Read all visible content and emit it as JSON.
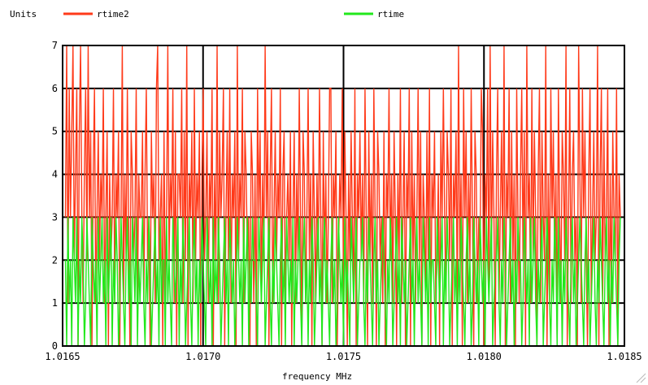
{
  "chart_data": {
    "type": "line",
    "ylabel": "Units",
    "xlabel": "frequency   MHz",
    "xlim": [
      1.0165,
      1.0185
    ],
    "ylim": [
      0,
      7
    ],
    "x_ticks": [
      "1.0165",
      "1.0170",
      "1.0175",
      "1.0180",
      "1.0185"
    ],
    "y_ticks": [
      "0",
      "1",
      "2",
      "3",
      "4",
      "5",
      "6",
      "7"
    ],
    "grid": true,
    "legend_placement": "top",
    "x_start": 1.01651,
    "x_step": 4.5e-06,
    "series": [
      {
        "name": "rtime2",
        "color": "#ff3a1a",
        "values": [
          3,
          7,
          1,
          6,
          3,
          5,
          7,
          2,
          4,
          6,
          0,
          5,
          7,
          3,
          1,
          4,
          6,
          2,
          7,
          3,
          5,
          0,
          4,
          6,
          1,
          3,
          5,
          2,
          4,
          3,
          6,
          1,
          3,
          5,
          0,
          4,
          2,
          3,
          6,
          1,
          4,
          3,
          5,
          0,
          3,
          7,
          1,
          4,
          2,
          6,
          3,
          0,
          5,
          4,
          2,
          3,
          6,
          1,
          4,
          3,
          3,
          5,
          1,
          4,
          6,
          2,
          3,
          0,
          5,
          3,
          4,
          1,
          6,
          7,
          2,
          3,
          4,
          0,
          5,
          1,
          3,
          7,
          2,
          4,
          3,
          6,
          1,
          5,
          0,
          4,
          4,
          3,
          6,
          1,
          5,
          2,
          7,
          0,
          4,
          3,
          5,
          1,
          6,
          2,
          4,
          3,
          5,
          0,
          4,
          6,
          2,
          3,
          5,
          1,
          4,
          3,
          6,
          0,
          4,
          2,
          7,
          1,
          5,
          3,
          4,
          6,
          0,
          3,
          5,
          2,
          6,
          1,
          4,
          3,
          5,
          0,
          7,
          2,
          4,
          3,
          6,
          1,
          5,
          4,
          2,
          3,
          0,
          5,
          4,
          1,
          4,
          0,
          6,
          3,
          5,
          1,
          4,
          2,
          7,
          3,
          5,
          0,
          4,
          6,
          1,
          3,
          5,
          2,
          4,
          3,
          6,
          0,
          4,
          5,
          1,
          3,
          4,
          2,
          5,
          0,
          3,
          5,
          1,
          4,
          2,
          6,
          3,
          0,
          5,
          4,
          1,
          3,
          6,
          2,
          4,
          0,
          5,
          3,
          1,
          4,
          2,
          6,
          3,
          0,
          5,
          2,
          4,
          1,
          3,
          6,
          6,
          1,
          4,
          3,
          5,
          0,
          2,
          4,
          3,
          6,
          1,
          5,
          3,
          0,
          4,
          2,
          5,
          3,
          1,
          6,
          0,
          4,
          3,
          5,
          2,
          4,
          1,
          6,
          3,
          0,
          5,
          2,
          4,
          1,
          6,
          3,
          0,
          5,
          4,
          2,
          3,
          1,
          5,
          0,
          4,
          3,
          6,
          2,
          4,
          1,
          5,
          3,
          0,
          4,
          2,
          6,
          1,
          3,
          5,
          0,
          4,
          3,
          6,
          0,
          5,
          2,
          4,
          1,
          3,
          6,
          2,
          5,
          0,
          4,
          3,
          1,
          5,
          2,
          6,
          0,
          4,
          3,
          5,
          1,
          2,
          4,
          0,
          5,
          3,
          6,
          3,
          1,
          5,
          4,
          2,
          6,
          0,
          4,
          3,
          5,
          1,
          7,
          2,
          4,
          0,
          6,
          3,
          5,
          1,
          4,
          2,
          6,
          3,
          0,
          5,
          4,
          1,
          3,
          2,
          6,
          5,
          0,
          4,
          3,
          6,
          1,
          7,
          2,
          5,
          3,
          0,
          4,
          6,
          1,
          3,
          5,
          2,
          7,
          0,
          4,
          3,
          6,
          1,
          5,
          2,
          4,
          0,
          6,
          3,
          1,
          4,
          6,
          2,
          5,
          0,
          7,
          3,
          4,
          1,
          6,
          2,
          5,
          3,
          0,
          4,
          6,
          1,
          5,
          3,
          2,
          7,
          0,
          4,
          1,
          6,
          3,
          5,
          2,
          4,
          0,
          6,
          3,
          1,
          5,
          4,
          2,
          7,
          0,
          3,
          6,
          1,
          4,
          5,
          2,
          3,
          0,
          7,
          4,
          1,
          6,
          3,
          5,
          2,
          0,
          4,
          6,
          1,
          3,
          5,
          2,
          3,
          7,
          0,
          4,
          6,
          1,
          5,
          2,
          3,
          6,
          0,
          4,
          1,
          5,
          3,
          2,
          6,
          0,
          4,
          3
        ]
      },
      {
        "name": "rtime",
        "color": "#22e81c",
        "values": [
          2,
          0,
          3,
          1,
          2,
          0,
          3,
          2,
          1,
          3,
          0,
          2,
          1,
          3,
          2,
          0,
          1,
          3,
          2,
          1,
          0,
          3,
          2,
          1,
          2,
          0,
          3,
          1,
          2,
          3,
          1,
          2,
          0,
          3,
          1,
          2,
          3,
          0,
          2,
          1,
          3,
          2,
          0,
          1,
          3,
          2,
          1,
          0,
          2,
          3,
          1,
          2,
          0,
          3,
          2,
          1,
          3,
          0,
          2,
          1,
          2,
          3,
          1,
          0,
          2,
          1,
          3,
          2,
          0,
          1,
          2,
          3,
          1,
          2,
          0,
          3,
          1,
          2,
          2,
          0,
          3,
          1,
          2,
          1,
          0,
          3,
          2,
          1,
          2,
          3,
          0,
          2,
          1,
          3,
          2,
          0,
          1,
          2,
          3,
          1,
          0,
          2,
          3,
          1,
          2,
          0,
          2,
          1,
          3,
          2,
          1,
          0,
          3,
          2,
          1,
          2,
          0,
          3,
          1,
          2,
          1,
          3,
          2,
          0,
          1,
          2,
          3,
          1,
          2,
          0,
          3,
          2,
          1,
          2,
          0,
          1,
          3,
          2,
          1,
          2,
          0,
          3,
          1,
          2,
          3,
          0,
          2,
          1,
          3,
          2,
          2,
          1,
          0,
          3,
          2,
          1,
          2,
          3,
          0,
          1,
          2,
          3,
          1,
          0,
          2,
          1,
          3,
          2,
          1,
          0,
          2,
          3,
          1,
          2,
          0,
          3,
          2,
          1,
          2,
          1,
          3,
          0,
          2,
          1,
          2,
          3,
          1,
          0,
          2,
          3,
          1,
          2,
          0,
          2,
          1,
          3,
          2,
          0,
          1,
          2,
          3,
          1,
          2,
          0,
          2,
          3,
          1,
          2,
          1,
          0,
          2,
          3,
          1,
          2,
          0,
          1,
          3,
          2,
          1,
          2,
          0,
          3,
          1,
          2,
          1,
          0,
          3,
          2,
          1,
          2,
          3,
          0,
          1,
          2,
          2,
          3,
          1,
          0,
          2,
          1,
          3,
          2,
          1,
          0,
          2,
          3,
          1,
          2,
          0,
          1,
          2,
          3,
          2,
          1,
          0,
          2,
          1,
          3,
          2,
          0,
          1,
          2,
          3,
          1,
          2,
          0,
          3,
          2,
          1,
          2,
          0,
          1,
          2,
          3,
          1,
          2,
          0,
          2,
          3,
          1,
          2,
          1,
          0,
          3,
          2,
          1,
          2,
          0,
          3,
          1,
          2,
          2,
          1,
          0,
          3,
          2,
          1,
          2,
          3,
          0,
          2,
          1,
          3,
          2,
          0,
          1,
          2,
          3,
          1,
          2,
          0,
          2,
          1,
          3,
          2,
          1,
          0,
          2,
          3,
          1,
          2,
          0,
          1,
          3,
          2,
          1,
          2,
          0,
          3,
          2,
          1,
          2,
          0,
          3,
          2,
          1,
          2,
          3,
          0,
          1,
          2,
          2,
          3,
          1,
          0,
          2,
          1,
          3,
          2,
          0,
          1,
          2,
          3,
          1,
          2,
          0,
          2,
          1,
          3,
          2,
          2,
          0,
          1,
          3,
          2,
          1,
          2,
          0,
          3,
          1,
          2,
          3,
          1,
          0,
          2,
          1,
          2,
          3,
          0,
          1,
          2,
          3,
          2,
          1,
          0,
          2,
          1,
          3,
          2,
          0,
          3,
          1,
          2,
          0,
          2,
          1,
          3,
          2,
          1,
          0,
          2,
          3,
          1,
          2,
          0,
          1,
          2,
          3,
          2,
          1,
          0,
          2,
          3,
          1,
          2,
          0,
          1,
          2,
          3,
          1,
          0,
          2,
          1,
          3,
          2,
          1,
          0,
          2,
          3,
          1,
          2,
          0,
          2,
          1,
          3,
          2,
          1,
          0,
          2,
          3
        ]
      }
    ]
  }
}
